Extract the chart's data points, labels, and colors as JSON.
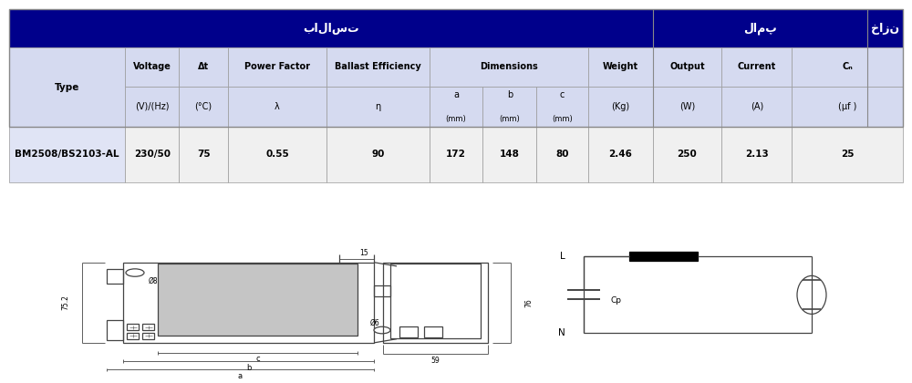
{
  "title_ballast": "بالاست",
  "title_lamp": "لامپ",
  "title_cap": "خازن",
  "header_bg": "#00008B",
  "header_text_color": "#FFFFFF",
  "subheader_bg": "#D5DAF0",
  "data_type_bg": "#E0E4F5",
  "data_row_bg": "#F0F0F0",
  "table_data": {
    "type": "BM2508/BS2103-AL",
    "voltage": "230/50",
    "delta_t": "75",
    "power_factor": "0.55",
    "ballast_efficiency": "90",
    "dim_a": "172",
    "dim_b": "148",
    "dim_c": "80",
    "weight": "2.46",
    "output": "250",
    "current": "2.13",
    "cap": "25"
  },
  "col_labels": {
    "type": "Type",
    "voltage": "Voltage",
    "delta_t": "Δt",
    "power_factor": "Power Factor",
    "ballast_eff": "Ballast Efficiency",
    "dimensions": "Dimensions",
    "dim_a": "a",
    "dim_b": "b",
    "dim_c": "c",
    "weight": "Weight",
    "output": "Output",
    "current": "Current",
    "cap": "Cₙ"
  },
  "col_units": {
    "voltage": "(V)/(Hz)",
    "delta_t": "(°C)",
    "power_factor": "λ",
    "ballast_eff": "η",
    "dim_a": "(mm)",
    "dim_b": "(mm)",
    "dim_c": "(mm)",
    "weight": "(Kg)",
    "output": "(W)",
    "current": "(A)",
    "cap": "(μf )"
  },
  "line_color": "#444444",
  "dim_label_75": "75.2",
  "dim_label_76": "76",
  "dim_label_15": "15",
  "dim_label_59": "59",
  "dim_label_phi8": "Ø8",
  "dim_label_phi6": "Ø6",
  "dim_label_a": "a",
  "dim_label_b": "b",
  "dim_label_c": "c",
  "circuit_L": "L",
  "circuit_N": "N",
  "circuit_Cp": "Cp"
}
